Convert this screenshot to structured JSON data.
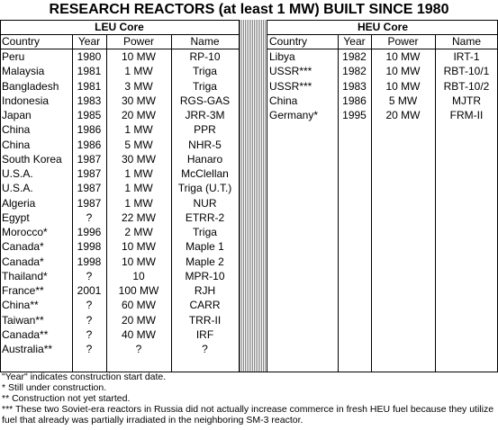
{
  "title": "RESEARCH REACTORS (at least 1 MW) BUILT SINCE 1980",
  "tables": [
    {
      "title": "LEU Core",
      "columns": [
        "Country",
        "Year",
        "Power",
        "Name"
      ],
      "rows": [
        [
          "Peru",
          "1980",
          "10 MW",
          "RP-10"
        ],
        [
          "Malaysia",
          "1981",
          "1 MW",
          "Triga"
        ],
        [
          "Bangladesh",
          "1981",
          "3 MW",
          "Triga"
        ],
        [
          "Indonesia",
          "1983",
          "30 MW",
          "RGS-GAS"
        ],
        [
          "Japan",
          "1985",
          "20 MW",
          "JRR-3M"
        ],
        [
          "China",
          "1986",
          "1 MW",
          "PPR"
        ],
        [
          "China",
          "1986",
          "5 MW",
          "NHR-5"
        ],
        [
          "South Korea",
          "1987",
          "30 MW",
          "Hanaro"
        ],
        [
          "U.S.A.",
          "1987",
          "1 MW",
          "McClellan"
        ],
        [
          "U.S.A.",
          "1987",
          "1 MW",
          "Triga (U.T.)"
        ],
        [
          "Algeria",
          "1987",
          "1 MW",
          "NUR"
        ],
        [
          "Egypt",
          "?",
          "22 MW",
          "ETRR-2"
        ],
        [
          "Morocco*",
          "1996",
          "2 MW",
          "Triga"
        ],
        [
          "Canada*",
          "1998",
          "10 MW",
          "Maple 1"
        ],
        [
          "Canada*",
          "1998",
          "10 MW",
          "Maple 2"
        ],
        [
          "Thailand*",
          "?",
          "10",
          "MPR-10"
        ],
        [
          "France**",
          "2001",
          "100 MW",
          "RJH"
        ],
        [
          "China**",
          "?",
          "60 MW",
          "CARR"
        ],
        [
          "Taiwan**",
          "?",
          "20 MW",
          "TRR-II"
        ],
        [
          "Canada**",
          "?",
          "40 MW",
          "IRF"
        ],
        [
          "Australia**",
          "?",
          "?",
          "?"
        ]
      ]
    },
    {
      "title": "HEU Core",
      "columns": [
        "Country",
        "Year",
        "Power",
        "Name"
      ],
      "rows": [
        [
          "Libya",
          "1982",
          "10 MW",
          "IRT-1"
        ],
        [
          "USSR***",
          "1982",
          "10 MW",
          "RBT-10/1"
        ],
        [
          "USSR***",
          "1983",
          "10 MW",
          "RBT-10/2"
        ],
        [
          "China",
          "1986",
          "5 MW",
          "MJTR"
        ],
        [
          "Germany*",
          "1995",
          "20 MW",
          "FRM-II"
        ]
      ]
    }
  ],
  "footnotes": [
    "\"Year\" indicates construction start date.",
    "* Still under construction.",
    "** Construction not yet started.",
    "*** These two Soviet-era reactors in Russia did not actually increase commerce in fresh HEU fuel because they utilize fuel that already was partially irradiated in the neighboring SM-3 reactor."
  ]
}
